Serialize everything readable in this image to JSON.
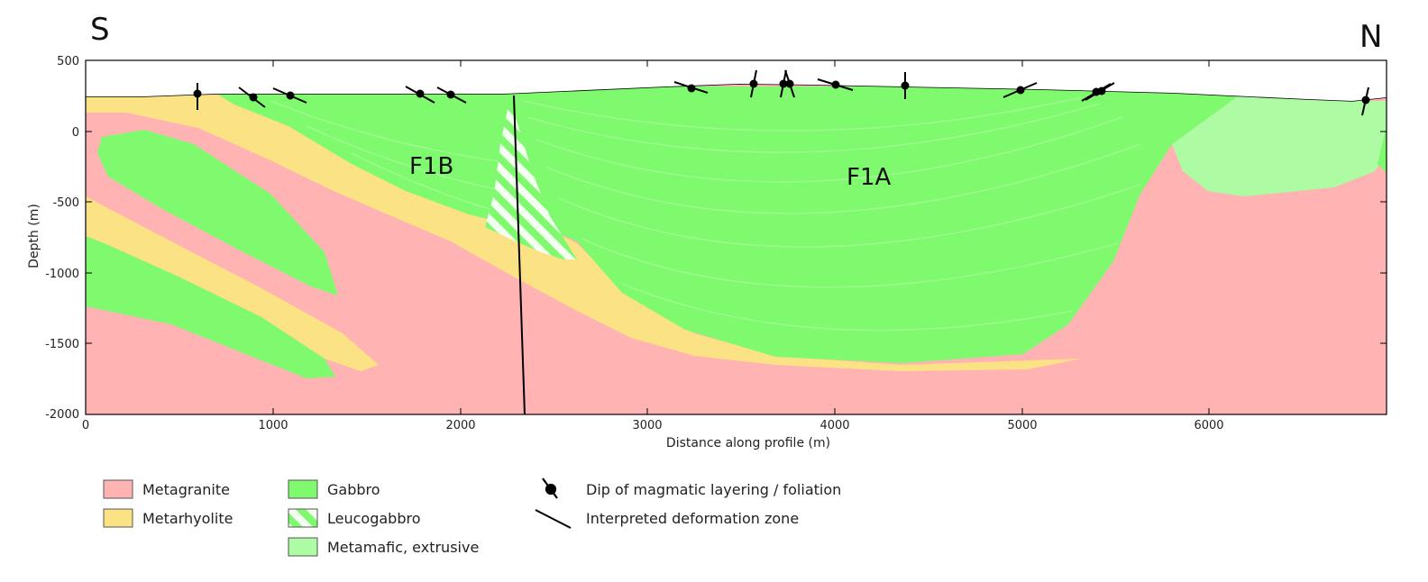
{
  "figure": {
    "direction_left": "S",
    "direction_right": "N",
    "labels": {
      "fold_b": "F1B",
      "fold_a": "F1A"
    },
    "x_axis": {
      "label": "Distance along profile (m)",
      "ticks": [
        "0",
        "1000",
        "2000",
        "3000",
        "4000",
        "5000",
        "6000"
      ],
      "range_m": [
        0,
        6950
      ]
    },
    "y_axis": {
      "label": "Depth (m)",
      "ticks": [
        "500",
        "0",
        "-500",
        "-1000",
        "-1500",
        "-2000"
      ],
      "range_m": [
        -2000,
        500
      ]
    },
    "colors": {
      "metagranite": "#ffb3b3",
      "metarhyolite": "#fbe284",
      "gabbro": "#7ffa6e",
      "leucogabbro_stripe": "#f3fff0",
      "metamafic": "#adfca4",
      "axis": "#000000"
    }
  },
  "legend": {
    "units": [
      {
        "label": "Metagranite",
        "color": "#ffb3b3",
        "pattern": "solid"
      },
      {
        "label": "Metarhyolite",
        "color": "#fbe284",
        "pattern": "solid"
      },
      {
        "label": "Gabbro",
        "color": "#7ffa6e",
        "pattern": "solid"
      },
      {
        "label": "Leucogabbro",
        "color": "#7ffa6e",
        "pattern": "hatch"
      },
      {
        "label": "Metamafic, extrusive",
        "color": "#adfca4",
        "pattern": "solid"
      }
    ],
    "symbols": [
      {
        "label": "Dip of magmatic layering / foliation",
        "icon": "dip-symbol-icon"
      },
      {
        "label": "Interpreted deformation zone",
        "icon": "deformation-zone-line-icon"
      }
    ]
  }
}
